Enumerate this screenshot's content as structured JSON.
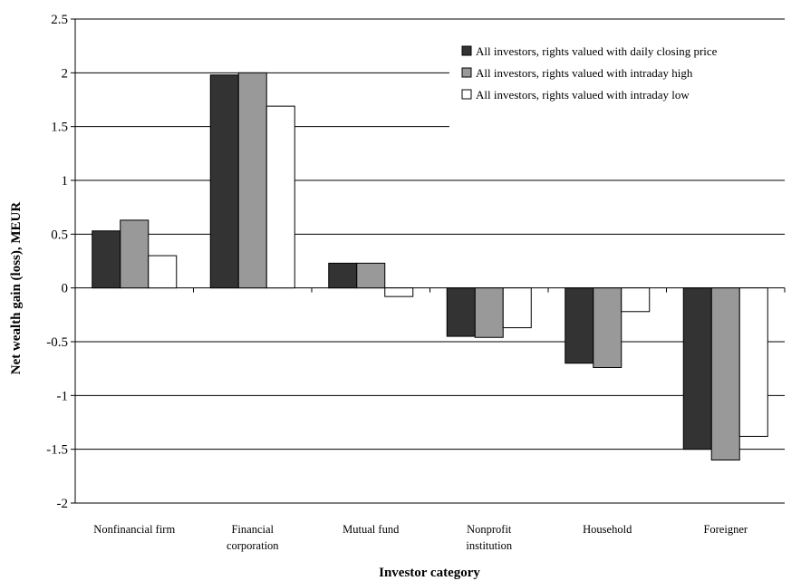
{
  "chart_data": {
    "type": "bar",
    "title": "",
    "xlabel": "Investor category",
    "ylabel": "Net wealth gain (loss), MEUR",
    "ylim": [
      -2,
      2.5
    ],
    "yticks": [
      2.5,
      2,
      1.5,
      1,
      0.5,
      0,
      -0.5,
      -1,
      -1.5,
      -2
    ],
    "yticks_labels": [
      "2.5",
      "2",
      "1.5",
      "1",
      "0.5",
      "0",
      "-0.5",
      "-1",
      "-1.5",
      "-2"
    ],
    "grid": "horizontal",
    "legend_position": "top-right",
    "categories": [
      [
        "Nonfinancial firm"
      ],
      [
        "Financial",
        "corporation"
      ],
      [
        "Mutual fund"
      ],
      [
        "Nonprofit",
        "institution"
      ],
      [
        "Household"
      ],
      [
        "Foreigner"
      ]
    ],
    "series": [
      {
        "name": "All investors, rights valued with daily closing price",
        "color": "#333333",
        "values": [
          0.53,
          1.98,
          0.23,
          -0.45,
          -0.7,
          -1.5
        ]
      },
      {
        "name": "All investors, rights valued with intraday high",
        "color": "#999999",
        "values": [
          0.63,
          2.0,
          0.23,
          -0.46,
          -0.74,
          -1.6
        ]
      },
      {
        "name": "All investors, rights valued with intraday low",
        "color": "#ffffff",
        "values": [
          0.3,
          1.69,
          -0.08,
          -0.37,
          -0.22,
          -1.38
        ]
      }
    ]
  }
}
